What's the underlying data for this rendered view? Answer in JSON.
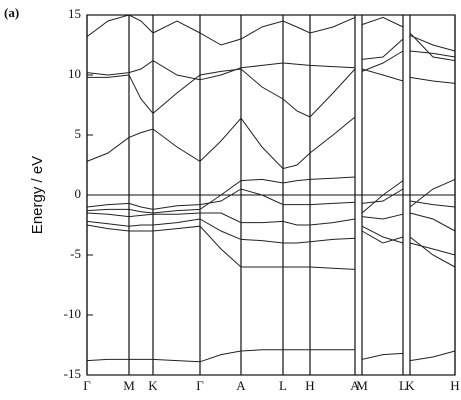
{
  "chart_data": {
    "type": "line",
    "annotation": "(a)",
    "y_label": "Energy / eV",
    "xlim": [
      0,
      368
    ],
    "ylim": [
      -15,
      15
    ],
    "yticks": [
      -15,
      -10,
      -5,
      0,
      5,
      10,
      15
    ],
    "xticks": [
      {
        "value": 0,
        "label": "Γ"
      },
      {
        "value": 42,
        "label": "M"
      },
      {
        "value": 66,
        "label": "K"
      },
      {
        "value": 113,
        "label": "Γ"
      },
      {
        "value": 154,
        "label": "A"
      },
      {
        "value": 196,
        "label": "L"
      },
      {
        "value": 223,
        "label": "H"
      },
      {
        "value": 268,
        "label": "A"
      },
      {
        "value": 275,
        "label": "M"
      },
      {
        "value": 316,
        "label": "L"
      },
      {
        "value": 323,
        "label": "K"
      },
      {
        "value": 368,
        "label": "H"
      }
    ],
    "grid": true,
    "reference_line": 0,
    "color": "#222222",
    "x": [
      0,
      21,
      42,
      54,
      66,
      90,
      113,
      134,
      154,
      175,
      196,
      210,
      223,
      246,
      268,
      271,
      275,
      296,
      316,
      319,
      323,
      346,
      368
    ],
    "series": [
      {
        "values": [
          -13.8,
          -13.7,
          -13.7,
          -13.7,
          -13.7,
          -13.8,
          -13.9,
          -13.3,
          -13.0,
          -12.9,
          -12.9,
          -12.9,
          -12.9,
          -12.9,
          -12.9,
          null,
          -13.7,
          -13.3,
          -13.2,
          null,
          -13.8,
          -13.5,
          -13.0
        ]
      },
      {
        "values": [
          -2.5,
          -2.8,
          -3.0,
          -3.0,
          -3.0,
          -2.8,
          -2.6,
          -4.5,
          -6.0,
          -6.0,
          -6.0,
          -6.0,
          -6.0,
          -6.1,
          -6.2,
          null,
          -3.0,
          -4.0,
          -3.5,
          null,
          -3.5,
          -5.0,
          -6.0
        ]
      },
      {
        "values": [
          -2.2,
          -2.4,
          -2.6,
          -2.5,
          -2.5,
          -2.3,
          -2.0,
          -3.0,
          -3.7,
          -3.8,
          -4.0,
          -4.0,
          -3.9,
          -3.7,
          -3.6,
          null,
          -2.6,
          -3.5,
          -4.0,
          null,
          -4.0,
          -4.5,
          -5.0
        ]
      },
      {
        "values": [
          -1.5,
          -1.6,
          -1.8,
          -1.7,
          -1.6,
          -1.6,
          -1.5,
          -1.5,
          -2.3,
          -2.3,
          -2.2,
          -2.5,
          -2.5,
          -2.3,
          -2.0,
          null,
          -1.8,
          -2.0,
          -1.6,
          null,
          -1.5,
          -2.0,
          -3.0
        ]
      },
      {
        "values": [
          -1.0,
          -0.8,
          -0.7,
          -1.0,
          -1.2,
          -0.9,
          -0.8,
          -0.5,
          0.5,
          0.0,
          -0.8,
          -0.8,
          -0.8,
          -0.7,
          -0.6,
          null,
          -0.7,
          -0.5,
          0.5,
          null,
          -0.5,
          -0.8,
          -1.0
        ]
      },
      {
        "values": [
          -1.3,
          -1.2,
          -1.2,
          -1.4,
          -1.5,
          -1.3,
          -1.2,
          0.0,
          1.2,
          1.3,
          1.0,
          1.2,
          1.3,
          1.4,
          1.5,
          null,
          -1.5,
          0.0,
          1.2,
          null,
          -1.0,
          0.5,
          1.3
        ]
      },
      {
        "values": [
          2.8,
          3.5,
          4.8,
          5.2,
          5.5,
          4.0,
          2.8,
          4.5,
          6.4,
          4.0,
          2.2,
          2.5,
          3.5,
          5.0,
          6.5,
          null,
          10.5,
          10.0,
          9.5,
          null,
          9.8,
          9.5,
          9.3
        ]
      },
      {
        "values": [
          9.8,
          9.8,
          10.0,
          8.0,
          6.8,
          8.5,
          10.0,
          10.3,
          10.5,
          9.0,
          8.0,
          7.0,
          6.5,
          8.5,
          10.5,
          null,
          10.3,
          11.0,
          12.0,
          null,
          13.5,
          11.5,
          11.2
        ]
      },
      {
        "values": [
          10.2,
          10.0,
          10.2,
          10.5,
          11.2,
          10.0,
          9.6,
          10.0,
          10.6,
          10.8,
          11.0,
          10.9,
          10.8,
          10.7,
          10.6,
          null,
          11.3,
          11.5,
          13.0,
          null,
          12.0,
          11.8,
          11.5
        ]
      },
      {
        "values": [
          13.2,
          14.5,
          15.0,
          14.5,
          13.5,
          14.5,
          13.5,
          12.5,
          13.0,
          14.0,
          14.5,
          14.0,
          13.5,
          14.0,
          14.8,
          null,
          14.2,
          14.8,
          14.0,
          null,
          13.3,
          12.5,
          12.0
        ]
      }
    ]
  }
}
